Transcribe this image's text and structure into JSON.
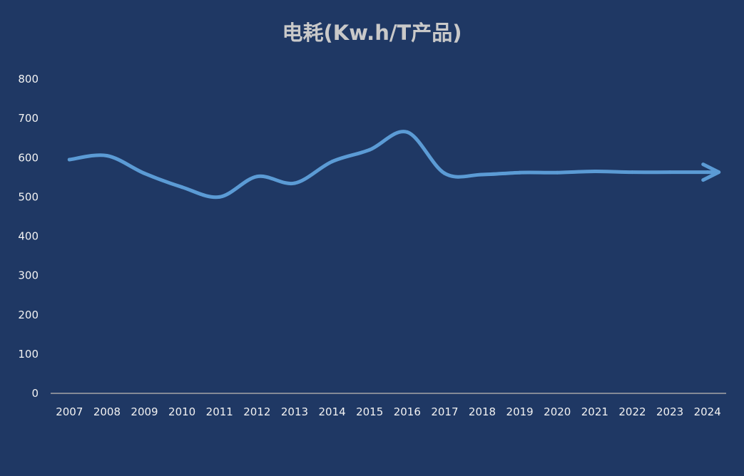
{
  "chart_data": {
    "type": "line",
    "title": "电耗(Kw.h/T产品)",
    "xlabel": "",
    "ylabel": "",
    "categories": [
      "2007",
      "2008",
      "2009",
      "2010",
      "2011",
      "2012",
      "2013",
      "2014",
      "2015",
      "2016",
      "2017",
      "2018",
      "2019",
      "2020",
      "2021",
      "2022",
      "2023",
      "2024"
    ],
    "y_ticks": [
      "0",
      "100",
      "200",
      "300",
      "400",
      "500",
      "600",
      "700",
      "800"
    ],
    "ylim": [
      0,
      800
    ],
    "series": [
      {
        "values": [
          595,
          605,
          560,
          525,
          500,
          552,
          535,
          590,
          620,
          665,
          560,
          557,
          562,
          562,
          565,
          563,
          563,
          563
        ],
        "color": "#5b9bd5",
        "end_marker": "arrow"
      }
    ],
    "grid": false,
    "legend": "none",
    "colors": {
      "background": "#1f3864",
      "line": "#5b9bd5",
      "axis": "#a6a6a6",
      "text": "#f2f2f2",
      "title": "#c9c9c9"
    }
  }
}
